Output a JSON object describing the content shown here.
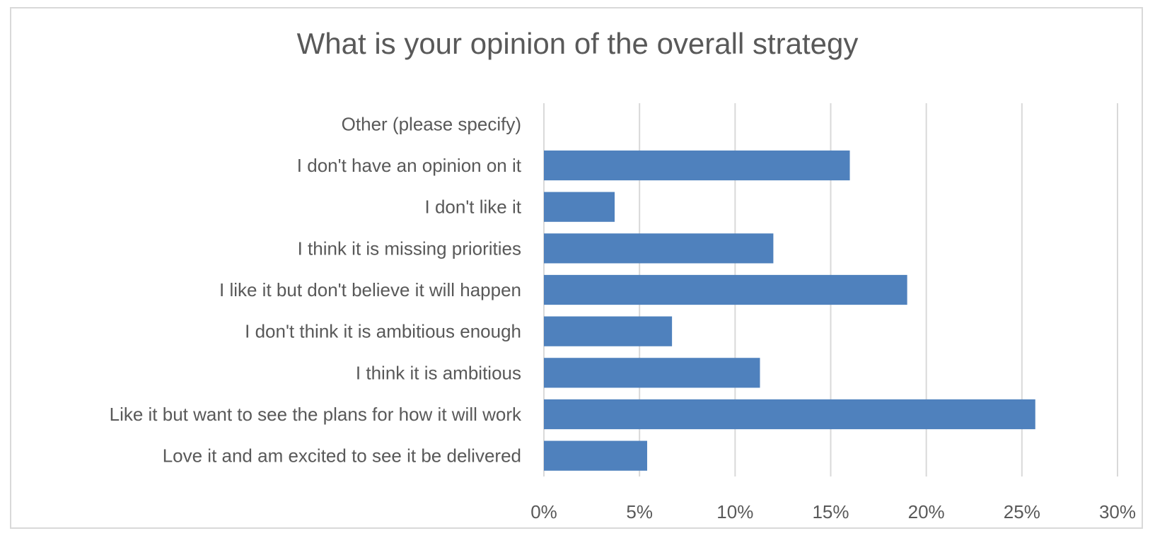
{
  "chart_data": {
    "type": "bar",
    "orientation": "horizontal",
    "title": "What is your opinion of the overall strategy",
    "xlabel": "",
    "ylabel": "",
    "categories": [
      "Other (please specify)",
      "I don't have an opinion on it",
      "I don't like it",
      "I think it is missing priorities",
      "I like it but don't believe it will happen",
      "I don't think it is ambitious enough",
      "I think it is ambitious",
      "Like it but want to see the plans for how it will work",
      "Love it and am excited to see it be delivered"
    ],
    "values": [
      0,
      0.16,
      0.037,
      0.12,
      0.19,
      0.067,
      0.113,
      0.257,
      0.054
    ],
    "xlim": [
      0,
      0.3
    ],
    "xticks": [
      0,
      0.05,
      0.1,
      0.15,
      0.2,
      0.25,
      0.3
    ],
    "xtick_labels": [
      "0%",
      "5%",
      "10%",
      "15%",
      "20%",
      "25%",
      "30%"
    ],
    "grid": "vertical",
    "legend": "none",
    "bar_color": "#4f81bd",
    "grid_color": "#d9d9d9"
  }
}
